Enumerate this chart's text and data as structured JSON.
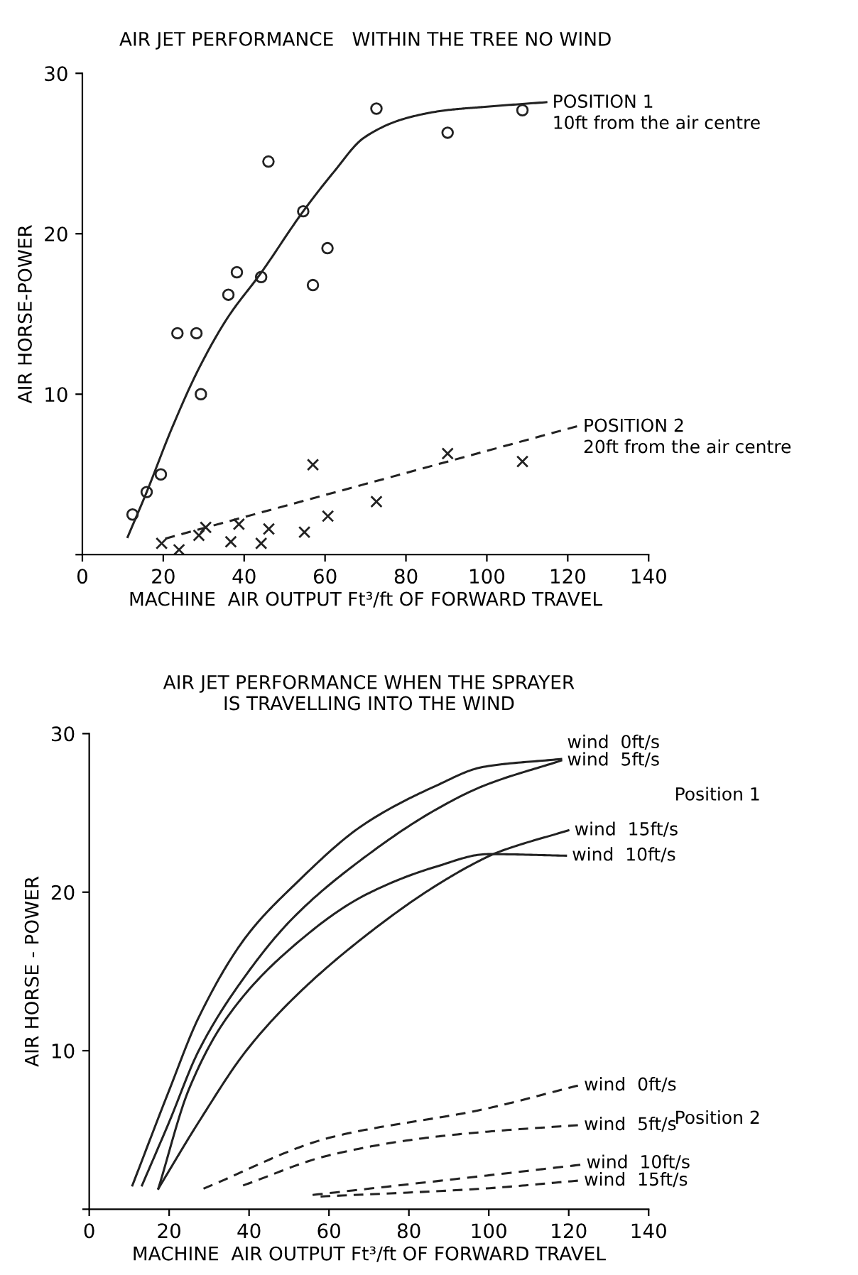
{
  "chart_data": [
    {
      "type": "scatter",
      "title": "AIR JET PERFORMANCE   WITHIN THE TREE NO WIND",
      "xlabel": "MACHINE  AIR OUTPUT Ft³/ft OF FORWARD TRAVEL",
      "ylabel": "AIR HORSE-POWER",
      "xlim": [
        0,
        140
      ],
      "ylim": [
        0,
        30
      ],
      "xticks": [
        0,
        20,
        40,
        60,
        80,
        100,
        120,
        140
      ],
      "yticks": [
        {
          "value": 0,
          "label": null
        },
        10,
        20,
        30
      ],
      "grid": false,
      "legend": false,
      "series": [
        {
          "type": "scatter",
          "marker": "circle",
          "color": "#222222",
          "x": [
            12.4,
            15.9,
            19.4,
            23.5,
            28.2,
            29.3,
            36.1,
            38.2,
            44.2,
            46.0,
            54.6,
            57.0,
            60.6,
            72.7,
            90.3,
            108.8
          ],
          "values": [
            2.5,
            3.9,
            5.0,
            13.8,
            13.8,
            10.0,
            16.2,
            17.6,
            17.3,
            24.5,
            21.4,
            16.8,
            19.1,
            27.8,
            26.3,
            27.7
          ]
        },
        {
          "type": "scatter",
          "marker": "cross",
          "color": "#222222",
          "x": [
            19.6,
            23.9,
            28.8,
            30.5,
            36.7,
            38.7,
            44.2,
            46.1,
            54.9,
            57.0,
            60.7,
            72.7,
            90.3,
            108.8
          ],
          "values": [
            0.7,
            0.3,
            1.2,
            1.7,
            0.8,
            1.9,
            0.7,
            1.6,
            1.4,
            5.6,
            2.4,
            3.3,
            6.3,
            5.8
          ]
        },
        {
          "type": "line",
          "name": "POSITION 1\n10ft from the air centre",
          "line_style": "solid",
          "color": "#222222",
          "x": [
            11.2,
            15.9,
            22,
            28.8,
            36,
            44,
            54.6,
            62,
            69.7,
            80,
            90,
            99,
            114.7
          ],
          "values": [
            1.1,
            3.9,
            7.8,
            11.6,
            14.8,
            17.5,
            21.4,
            23.8,
            26.0,
            27.2,
            27.7,
            27.9,
            28.2
          ]
        },
        {
          "type": "line",
          "name": "POSITION 2\n20ft from the air centre",
          "line_style": "dashed",
          "color": "#222222",
          "x": [
            20.5,
            122.3
          ],
          "values": [
            1.0,
            8.0
          ]
        }
      ]
    },
    {
      "type": "line",
      "title": "AIR JET PERFORMANCE WHEN THE SPRAYER\nIS TRAVELLING INTO THE WIND",
      "xlabel": "MACHINE  AIR OUTPUT Ft³/ft OF FORWARD TRAVEL",
      "ylabel": "AIR HORSE - POWER",
      "xlim": [
        0,
        140
      ],
      "ylim": [
        0,
        30
      ],
      "xticks": [
        0,
        20,
        40,
        60,
        80,
        100,
        120,
        140
      ],
      "yticks": [
        {
          "value": 0,
          "label": null
        },
        10,
        20,
        30
      ],
      "grid": false,
      "legend": false,
      "annotations": [
        "Position 1",
        "Position 2"
      ],
      "series": [
        {
          "name": "wind  0ft/s",
          "line_style": "solid",
          "color": "#222222",
          "x": [
            10.8,
            20,
            27.4,
            39.3,
            51.1,
            68.9,
            86.7,
            98.6,
            118.1
          ],
          "values": [
            1.5,
            7.5,
            12.1,
            17.2,
            20.4,
            24.3,
            26.7,
            27.9,
            28.4
          ]
        },
        {
          "name": "wind  5ft/s",
          "line_style": "solid",
          "color": "#222222",
          "x": [
            13.2,
            20,
            27.4,
            39.3,
            51.1,
            68.9,
            86.7,
            98.6,
            118.1
          ],
          "values": [
            1.5,
            5.5,
            10.0,
            14.8,
            18.4,
            22.2,
            25.2,
            26.7,
            28.3
          ]
        },
        {
          "name": "wind  15ft/s",
          "line_style": "solid",
          "color": "#222222",
          "x": [
            17.3,
            27.4,
            39.3,
            51.1,
            68.9,
            86.7,
            98.6,
            102.1,
            119.9
          ],
          "values": [
            1.3,
            5.5,
            10.0,
            13.3,
            17.2,
            20.4,
            22.1,
            22.5,
            23.9
          ]
        },
        {
          "name": "wind  10ft/s",
          "line_style": "solid",
          "color": "#222222",
          "x": [
            17.3,
            25.0,
            34.5,
            51.1,
            68.9,
            86.7,
            99.8,
            119.3
          ],
          "values": [
            1.3,
            7.6,
            12.1,
            16.6,
            19.8,
            21.6,
            22.4,
            22.3
          ]
        },
        {
          "name": "wind  0ft/s",
          "line_style": "dashed",
          "color": "#222222",
          "x": [
            28.6,
            60,
            98.6,
            122.3
          ],
          "values": [
            1.3,
            4.5,
            6.3,
            7.8
          ]
        },
        {
          "name": "wind  5ft/s",
          "line_style": "dashed",
          "color": "#222222",
          "x": [
            38.5,
            60,
            84.3,
            100,
            122.3
          ],
          "values": [
            1.5,
            3.4,
            4.5,
            4.9,
            5.3
          ]
        },
        {
          "name": "wind  10ft/s",
          "line_style": "dashed",
          "color": "#222222",
          "x": [
            55.9,
            98.6,
            122.9
          ],
          "values": [
            0.9,
            2.1,
            2.8
          ]
        },
        {
          "name": "wind  15ft/s",
          "line_style": "dashed",
          "color": "#222222",
          "x": [
            57.9,
            98.6,
            122.3
          ],
          "values": [
            0.8,
            1.3,
            1.8
          ]
        }
      ]
    }
  ]
}
